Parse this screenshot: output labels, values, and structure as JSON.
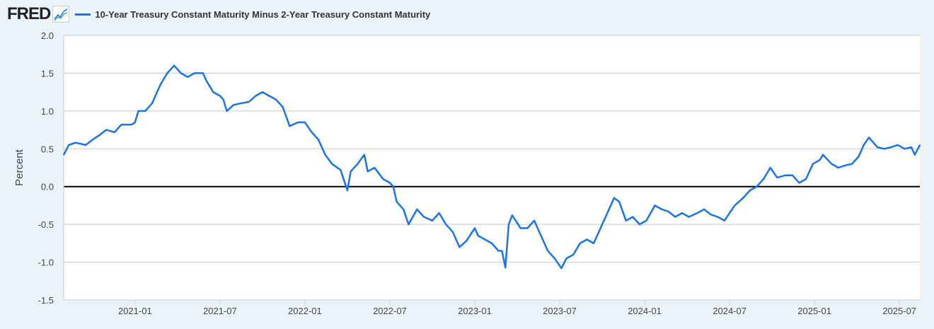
{
  "header": {
    "logo": "FRED",
    "logo_icon": "chart-line-icon"
  },
  "chart_data": {
    "type": "line",
    "title": "10-Year Treasury Constant Maturity Minus 2-Year Treasury Constant Maturity",
    "xlabel": "",
    "ylabel": "Percent",
    "ylim": [
      -1.5,
      2.0
    ],
    "xlim": [
      2020.58,
      2025.62
    ],
    "grid": true,
    "legend": "top-left",
    "color": "#1a73e8",
    "yticks": [
      "2.0",
      "1.5",
      "1.0",
      "0.5",
      "0.0",
      "-0.5",
      "-1.0",
      "-1.5"
    ],
    "xticks": [
      {
        "label": "2021-01",
        "value": 2021.0
      },
      {
        "label": "2021-07",
        "value": 2021.5
      },
      {
        "label": "2022-01",
        "value": 2022.0
      },
      {
        "label": "2022-07",
        "value": 2022.5
      },
      {
        "label": "2023-01",
        "value": 2023.0
      },
      {
        "label": "2023-07",
        "value": 2023.5
      },
      {
        "label": "2024-01",
        "value": 2024.0
      },
      {
        "label": "2024-07",
        "value": 2024.5
      },
      {
        "label": "2025-01",
        "value": 2025.0
      },
      {
        "label": "2025-07",
        "value": 2025.5
      }
    ],
    "series": [
      {
        "name": "10-Year Treasury Constant Maturity Minus 2-Year Treasury Constant Maturity",
        "x": [
          2020.58,
          2020.61,
          2020.65,
          2020.71,
          2020.75,
          2020.79,
          2020.83,
          2020.88,
          2020.92,
          2020.98,
          2021.0,
          2021.02,
          2021.06,
          2021.1,
          2021.15,
          2021.19,
          2021.23,
          2021.27,
          2021.31,
          2021.35,
          2021.4,
          2021.42,
          2021.46,
          2021.5,
          2021.52,
          2021.54,
          2021.58,
          2021.62,
          2021.67,
          2021.71,
          2021.75,
          2021.79,
          2021.83,
          2021.87,
          2021.91,
          2021.96,
          2022.0,
          2022.04,
          2022.08,
          2022.12,
          2022.16,
          2022.21,
          2022.25,
          2022.27,
          2022.31,
          2022.35,
          2022.37,
          2022.41,
          2022.46,
          2022.5,
          2022.52,
          2022.54,
          2022.58,
          2022.61,
          2022.66,
          2022.7,
          2022.75,
          2022.79,
          2022.83,
          2022.87,
          2022.91,
          2022.95,
          2023.0,
          2023.02,
          2023.06,
          2023.1,
          2023.14,
          2023.16,
          2023.18,
          2023.2,
          2023.22,
          2023.27,
          2023.31,
          2023.35,
          2023.39,
          2023.43,
          2023.47,
          2023.51,
          2023.54,
          2023.58,
          2023.62,
          2023.66,
          2023.7,
          2023.74,
          2023.77,
          2023.79,
          2023.82,
          2023.85,
          2023.89,
          2023.93,
          2023.97,
          2024.01,
          2024.06,
          2024.1,
          2024.14,
          2024.18,
          2024.22,
          2024.26,
          2024.31,
          2024.35,
          2024.39,
          2024.43,
          2024.47,
          2024.5,
          2024.53,
          2024.58,
          2024.62,
          2024.66,
          2024.7,
          2024.74,
          2024.78,
          2024.83,
          2024.87,
          2024.91,
          2024.95,
          2024.99,
          2025.03,
          2025.05,
          2025.1,
          2025.14,
          2025.18,
          2025.22,
          2025.26,
          2025.29,
          2025.32,
          2025.37,
          2025.41,
          2025.45,
          2025.49,
          2025.53,
          2025.57,
          2025.59,
          2025.62
        ],
        "values": [
          0.42,
          0.55,
          0.58,
          0.55,
          0.62,
          0.68,
          0.75,
          0.72,
          0.82,
          0.82,
          0.85,
          1.0,
          1.0,
          1.1,
          1.35,
          1.5,
          1.6,
          1.5,
          1.45,
          1.5,
          1.5,
          1.4,
          1.25,
          1.2,
          1.15,
          1.0,
          1.08,
          1.1,
          1.12,
          1.2,
          1.25,
          1.2,
          1.15,
          1.05,
          0.8,
          0.85,
          0.85,
          0.72,
          0.62,
          0.42,
          0.3,
          0.22,
          -0.05,
          0.2,
          0.3,
          0.42,
          0.2,
          0.25,
          0.1,
          0.05,
          0.0,
          -0.2,
          -0.3,
          -0.5,
          -0.3,
          -0.4,
          -0.45,
          -0.35,
          -0.5,
          -0.6,
          -0.8,
          -0.72,
          -0.55,
          -0.65,
          -0.7,
          -0.75,
          -0.85,
          -0.85,
          -1.07,
          -0.5,
          -0.38,
          -0.55,
          -0.55,
          -0.45,
          -0.65,
          -0.85,
          -0.95,
          -1.08,
          -0.95,
          -0.9,
          -0.75,
          -0.7,
          -0.75,
          -0.55,
          -0.4,
          -0.3,
          -0.15,
          -0.2,
          -0.45,
          -0.4,
          -0.5,
          -0.45,
          -0.25,
          -0.3,
          -0.33,
          -0.4,
          -0.35,
          -0.4,
          -0.35,
          -0.3,
          -0.37,
          -0.4,
          -0.45,
          -0.35,
          -0.25,
          -0.15,
          -0.05,
          0.0,
          0.1,
          0.25,
          0.12,
          0.15,
          0.15,
          0.05,
          0.1,
          0.3,
          0.35,
          0.42,
          0.3,
          0.25,
          0.28,
          0.3,
          0.4,
          0.55,
          0.65,
          0.52,
          0.5,
          0.52,
          0.55,
          0.5,
          0.52,
          0.42,
          0.55
        ]
      }
    ]
  }
}
